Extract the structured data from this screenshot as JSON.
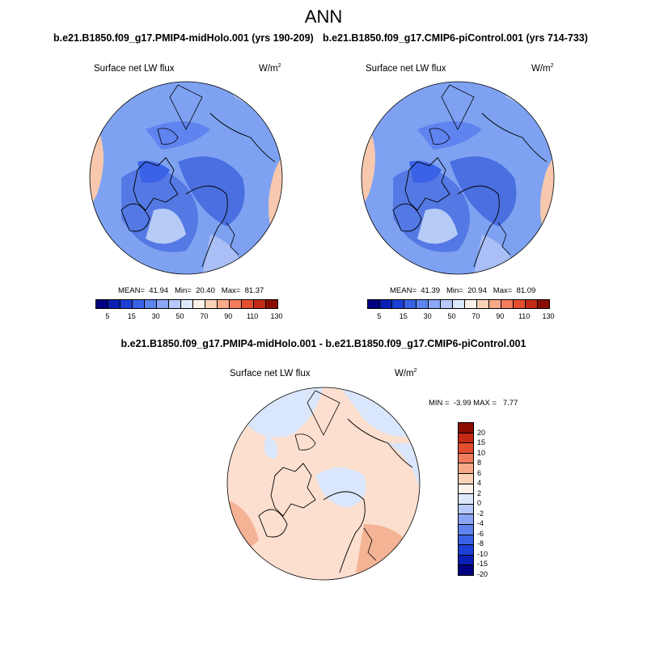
{
  "title": "ANN",
  "panels": [
    {
      "run_title": "b.e21.B1850.f09_g17.PMIP4-midHolo.001 (yrs 190-209)",
      "variable": "Surface net LW flux",
      "units_base": "W/m",
      "units_exp": "2",
      "stats_text": "MEAN=  41.94   Min=  20.40   Max=  81.37",
      "mean": 41.94,
      "min": 20.4,
      "max": 81.37
    },
    {
      "run_title": "b.e21.B1850.f09_g17.CMIP6-piControl.001 (yrs 714-733)",
      "variable": "Surface net LW flux",
      "units_base": "W/m",
      "units_exp": "2",
      "stats_text": "MEAN=  41.39   Min=  20.94   Max=  81.09",
      "mean": 41.39,
      "min": 20.94,
      "max": 81.09
    }
  ],
  "diff": {
    "title": "b.e21.B1850.f09_g17.PMIP4-midHolo.001 - b.e21.B1850.f09_g17.CMIP6-piControl.001",
    "variable": "Surface net LW flux",
    "units_base": "W/m",
    "units_exp": "2",
    "stats_text": "MIN =  -3.99 MAX =   7.77",
    "min": -3.99,
    "max": 7.77
  },
  "field_colorbar": {
    "colors": [
      "#000080",
      "#0a1fb4",
      "#1c3fd6",
      "#3a62e6",
      "#5f83ef",
      "#8aa6f4",
      "#b6c9f8",
      "#dce8fb",
      "#fdf2ea",
      "#fbd1b8",
      "#f8a98a",
      "#f27d5d",
      "#e34e30",
      "#c42a15",
      "#8b0c00"
    ],
    "tick_labels": [
      "5",
      "15",
      "30",
      "50",
      "70",
      "90",
      "110",
      "130"
    ]
  },
  "diff_colorbar": {
    "colors_top_to_bottom": [
      "#8b0c00",
      "#c42a15",
      "#e34e30",
      "#f27d5d",
      "#f8a98a",
      "#fbd1b8",
      "#fdf2ea",
      "#dce8fb",
      "#b6c9f8",
      "#8aa6f4",
      "#5f83ef",
      "#3a62e6",
      "#1c3fd6",
      "#0a1fb4",
      "#000080"
    ],
    "tick_labels_top_to_bottom": [
      "20",
      "15",
      "10",
      "8",
      "6",
      "4",
      "2",
      "0",
      "-2",
      "-4",
      "-6",
      "-8",
      "-10",
      "-15",
      "-20"
    ]
  },
  "colors": {
    "field_ocean": "#7ea2f1",
    "field_deep": "#5478e4",
    "field_light": "#b7cbf7",
    "field_warm": "#f7c8ae",
    "diff_bg": "#fcdfce",
    "diff_blue": "#d9e6fb",
    "diff_warm": "#f4b394"
  }
}
